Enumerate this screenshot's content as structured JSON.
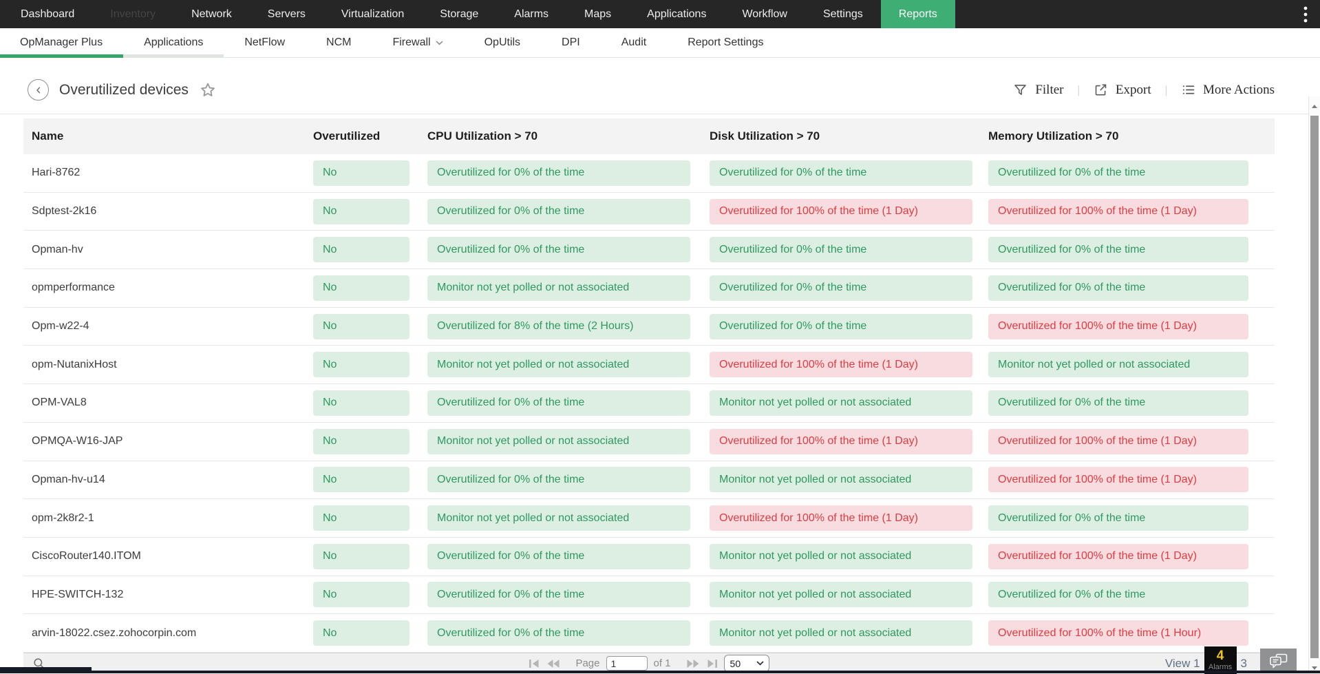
{
  "topnav": {
    "items": [
      {
        "label": "Dashboard"
      },
      {
        "label": "Inventory",
        "dimmed": true
      },
      {
        "label": "Network"
      },
      {
        "label": "Servers"
      },
      {
        "label": "Virtualization"
      },
      {
        "label": "Storage"
      },
      {
        "label": "Alarms"
      },
      {
        "label": "Maps"
      },
      {
        "label": "Applications"
      },
      {
        "label": "Workflow"
      },
      {
        "label": "Settings"
      },
      {
        "label": "Reports",
        "active": true
      }
    ]
  },
  "subnav": {
    "items": [
      {
        "label": "OpManager Plus",
        "underline": "active"
      },
      {
        "label": "Applications",
        "underline": "secondary"
      },
      {
        "label": "NetFlow"
      },
      {
        "label": "NCM"
      },
      {
        "label": "Firewall",
        "chevron": true
      },
      {
        "label": "OpUtils"
      },
      {
        "label": "DPI"
      },
      {
        "label": "Audit"
      },
      {
        "label": "Report Settings"
      }
    ]
  },
  "toolbar": {
    "title": "Overutilized devices",
    "actions": [
      {
        "label": "Filter",
        "icon": "filter-icon"
      },
      {
        "label": "Export",
        "icon": "export-icon"
      },
      {
        "label": "More Actions",
        "icon": "more-actions-icon"
      }
    ]
  },
  "table": {
    "columns": [
      "Name",
      "Overutilized",
      "CPU Utilization > 70",
      "Disk Utilization > 70",
      "Memory Utilization > 70"
    ],
    "rows": [
      {
        "name": "Hari-8762",
        "overutilized": {
          "text": "No",
          "status": "ok"
        },
        "cpu": {
          "text": "Overutilized for 0% of the time",
          "status": "ok"
        },
        "disk": {
          "text": "Overutilized for 0% of the time",
          "status": "ok"
        },
        "memory": {
          "text": "Overutilized for 0% of the time",
          "status": "ok"
        }
      },
      {
        "name": "Sdptest-2k16",
        "overutilized": {
          "text": "No",
          "status": "ok"
        },
        "cpu": {
          "text": "Overutilized for 0% of the time",
          "status": "ok"
        },
        "disk": {
          "text": "Overutilized for 100% of the time (1 Day)",
          "status": "alert"
        },
        "memory": {
          "text": "Overutilized for 100% of the time (1 Day)",
          "status": "alert"
        }
      },
      {
        "name": "Opman-hv",
        "overutilized": {
          "text": "No",
          "status": "ok"
        },
        "cpu": {
          "text": "Overutilized for 0% of the time",
          "status": "ok"
        },
        "disk": {
          "text": "Overutilized for 0% of the time",
          "status": "ok"
        },
        "memory": {
          "text": "Overutilized for 0% of the time",
          "status": "ok"
        }
      },
      {
        "name": "opmperformance",
        "overutilized": {
          "text": "No",
          "status": "ok"
        },
        "cpu": {
          "text": "Monitor not yet polled or not associated",
          "status": "ok"
        },
        "disk": {
          "text": "Overutilized for 0% of the time",
          "status": "ok"
        },
        "memory": {
          "text": "Overutilized for 0% of the time",
          "status": "ok"
        }
      },
      {
        "name": "Opm-w22-4",
        "overutilized": {
          "text": "No",
          "status": "ok"
        },
        "cpu": {
          "text": "Overutilized for 8% of the time (2 Hours)",
          "status": "ok"
        },
        "disk": {
          "text": "Overutilized for 0% of the time",
          "status": "ok"
        },
        "memory": {
          "text": "Overutilized for 100% of the time (1 Day)",
          "status": "alert"
        }
      },
      {
        "name": "opm-NutanixHost",
        "overutilized": {
          "text": "No",
          "status": "ok"
        },
        "cpu": {
          "text": "Monitor not yet polled or not associated",
          "status": "ok"
        },
        "disk": {
          "text": "Overutilized for 100% of the time (1 Day)",
          "status": "alert"
        },
        "memory": {
          "text": "Monitor not yet polled or not associated",
          "status": "ok"
        }
      },
      {
        "name": "OPM-VAL8",
        "overutilized": {
          "text": "No",
          "status": "ok"
        },
        "cpu": {
          "text": "Overutilized for 0% of the time",
          "status": "ok"
        },
        "disk": {
          "text": "Monitor not yet polled or not associated",
          "status": "ok"
        },
        "memory": {
          "text": "Overutilized for 0% of the time",
          "status": "ok"
        }
      },
      {
        "name": "OPMQA-W16-JAP",
        "overutilized": {
          "text": "No",
          "status": "ok"
        },
        "cpu": {
          "text": "Monitor not yet polled or not associated",
          "status": "ok"
        },
        "disk": {
          "text": "Overutilized for 100% of the time (1 Day)",
          "status": "alert"
        },
        "memory": {
          "text": "Overutilized for 100% of the time (1 Day)",
          "status": "alert"
        }
      },
      {
        "name": "Opman-hv-u14",
        "overutilized": {
          "text": "No",
          "status": "ok"
        },
        "cpu": {
          "text": "Overutilized for 0% of the time",
          "status": "ok"
        },
        "disk": {
          "text": "Monitor not yet polled or not associated",
          "status": "ok"
        },
        "memory": {
          "text": "Overutilized for 100% of the time (1 Day)",
          "status": "alert"
        }
      },
      {
        "name": "opm-2k8r2-1",
        "overutilized": {
          "text": "No",
          "status": "ok"
        },
        "cpu": {
          "text": "Monitor not yet polled or not associated",
          "status": "ok"
        },
        "disk": {
          "text": "Overutilized for 100% of the time (1 Day)",
          "status": "alert"
        },
        "memory": {
          "text": "Overutilized for 0% of the time",
          "status": "ok"
        }
      },
      {
        "name": "CiscoRouter140.ITOM",
        "overutilized": {
          "text": "No",
          "status": "ok"
        },
        "cpu": {
          "text": "Overutilized for 0% of the time",
          "status": "ok"
        },
        "disk": {
          "text": "Monitor not yet polled or not associated",
          "status": "ok"
        },
        "memory": {
          "text": "Overutilized for 100% of the time (1 Day)",
          "status": "alert"
        }
      },
      {
        "name": "HPE-SWITCH-132",
        "overutilized": {
          "text": "No",
          "status": "ok"
        },
        "cpu": {
          "text": "Overutilized for 0% of the time",
          "status": "ok"
        },
        "disk": {
          "text": "Monitor not yet polled or not associated",
          "status": "ok"
        },
        "memory": {
          "text": "Overutilized for 0% of the time",
          "status": "ok"
        }
      },
      {
        "name": "arvin-18022.csez.zohocorpin.com",
        "overutilized": {
          "text": "No",
          "status": "ok"
        },
        "cpu": {
          "text": "Overutilized for 0% of the time",
          "status": "ok"
        },
        "disk": {
          "text": "Monitor not yet polled or not associated",
          "status": "ok"
        },
        "memory": {
          "text": "Overutilized for 100% of the time (1 Hour)",
          "status": "alert"
        }
      }
    ]
  },
  "footer": {
    "page_label": "Page",
    "page_value": "1",
    "of_label": "of 1",
    "page_size": "50",
    "view_prefix": "View 1",
    "view_suffix": "3",
    "alarms_count": "4",
    "alarms_label": "Alarms"
  },
  "colors": {
    "accent_green": "#3fae75",
    "badge_ok_bg": "#dcefe2",
    "badge_ok_text": "#2e9960",
    "badge_alert_bg": "#f9dce0",
    "badge_alert_text": "#e23b3f",
    "topnav_bg": "#262626",
    "alarm_count_color": "#f0c419"
  }
}
